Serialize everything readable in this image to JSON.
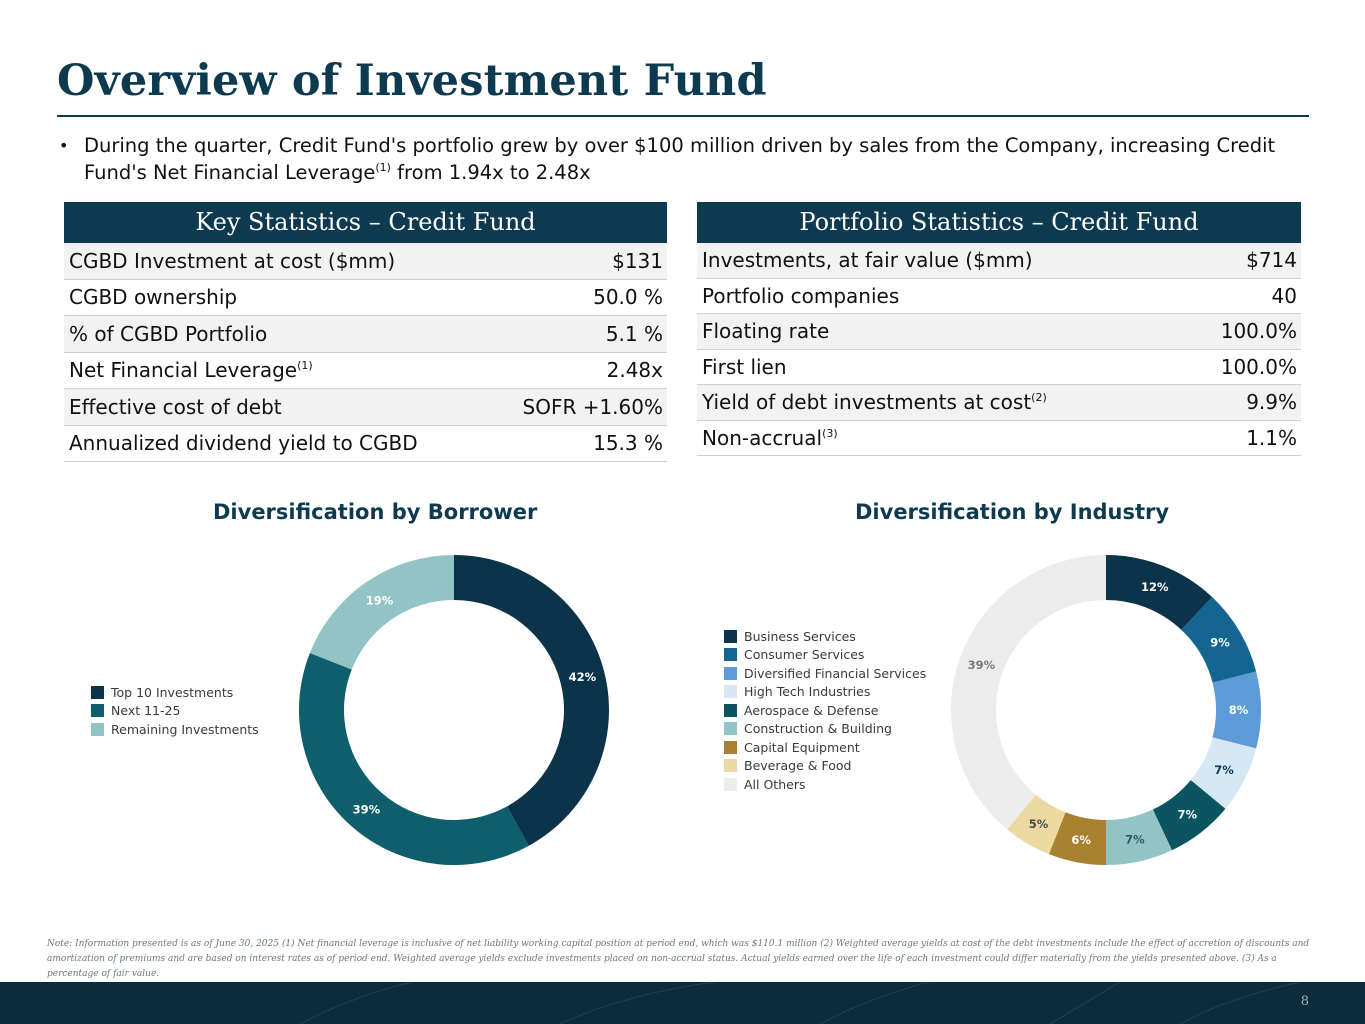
{
  "page": {
    "title": "Overview of Investment Fund",
    "bullet": {
      "part1": "During the quarter, Credit Fund's portfolio grew by over $100 million driven by sales from the Company, increasing Credit Fund's Net Financial Leverage",
      "sup": "(1)",
      "part2": " from 1.94x to 2.48x"
    },
    "page_number": "8",
    "footnote": "Note: Information presented is as of June 30, 2025 (1) Net financial leverage is inclusive of net liability working capital position at period end, which was $110.1 million (2) Weighted average yields at cost of the debt investments include the effect of accretion of discounts and amortization of premiums and are based on interest rates as of period end. Weighted average yields exclude investments placed on non-accrual status. Actual yields earned over the life of each investment could differ materially from the yields presented above. (3) As a percentage of fair value."
  },
  "key_stats": {
    "header": "Key Statistics – Credit Fund",
    "rows": [
      {
        "label": "CGBD Investment at cost ($mm)",
        "sup": "",
        "value": "$131"
      },
      {
        "label": "CGBD ownership",
        "sup": "",
        "value": "50.0 %"
      },
      {
        "label": "% of CGBD Portfolio",
        "sup": "",
        "value": "5.1 %"
      },
      {
        "label": "Net Financial Leverage",
        "sup": "(1)",
        "value": "2.48x"
      },
      {
        "label": "Effective cost of debt",
        "sup": "",
        "value": "SOFR +1.60%"
      },
      {
        "label": "Annualized dividend yield to CGBD",
        "sup": "",
        "value": "15.3 %"
      }
    ]
  },
  "portfolio_stats": {
    "header": "Portfolio Statistics – Credit Fund",
    "rows": [
      {
        "label": "Investments, at fair value ($mm)",
        "sup": "",
        "value": "$714"
      },
      {
        "label": "Portfolio companies",
        "sup": "",
        "value": "40"
      },
      {
        "label": "Floating rate",
        "sup": "",
        "value": "100.0%"
      },
      {
        "label": "First lien",
        "sup": "",
        "value": "100.0%"
      },
      {
        "label": "Yield of debt investments at cost",
        "sup": "(2)",
        "value": "9.9%"
      },
      {
        "label": "Non-accrual",
        "sup": "(3)",
        "value": "1.1%"
      }
    ]
  },
  "chart_data": [
    {
      "type": "pie",
      "title": "Diversification by Borrower",
      "categories": [
        "Top 10 Investments",
        "Next 11-25",
        "Remaining Investments"
      ],
      "values": [
        42,
        39,
        19
      ],
      "labels": [
        "42%",
        "39%",
        "19%"
      ],
      "colors": [
        "#0b3349",
        "#0e5f6b",
        "#93c4c5"
      ],
      "label_colors": [
        "#ffffff",
        "#ffffff",
        "#ffffff"
      ],
      "legend_position": "left"
    },
    {
      "type": "pie",
      "title": "Diversification by Industry",
      "categories": [
        "Business Services",
        "Consumer Services",
        "Diversified Financial Services",
        "High Tech Industries",
        "Aerospace & Defense",
        "Construction & Building",
        "Capital Equipment",
        "Beverage & Food",
        "All Others"
      ],
      "values": [
        12,
        9,
        8,
        7,
        7,
        7,
        6,
        5,
        39
      ],
      "labels": [
        "12%",
        "9%",
        "8%",
        "7%",
        "7%",
        "7%",
        "6%",
        "5%",
        "39%"
      ],
      "colors": [
        "#0b3349",
        "#146690",
        "#5d9ad8",
        "#d6e8f6",
        "#0b5560",
        "#93c4c5",
        "#a8802f",
        "#ecd9a2",
        "#ececec"
      ],
      "label_colors": [
        "#ffffff",
        "#ffffff",
        "#ffffff",
        "#0d3a4f",
        "#ffffff",
        "#3a5560",
        "#ffffff",
        "#4a4a4a",
        "#7a7a7a"
      ],
      "legend_position": "left"
    }
  ]
}
